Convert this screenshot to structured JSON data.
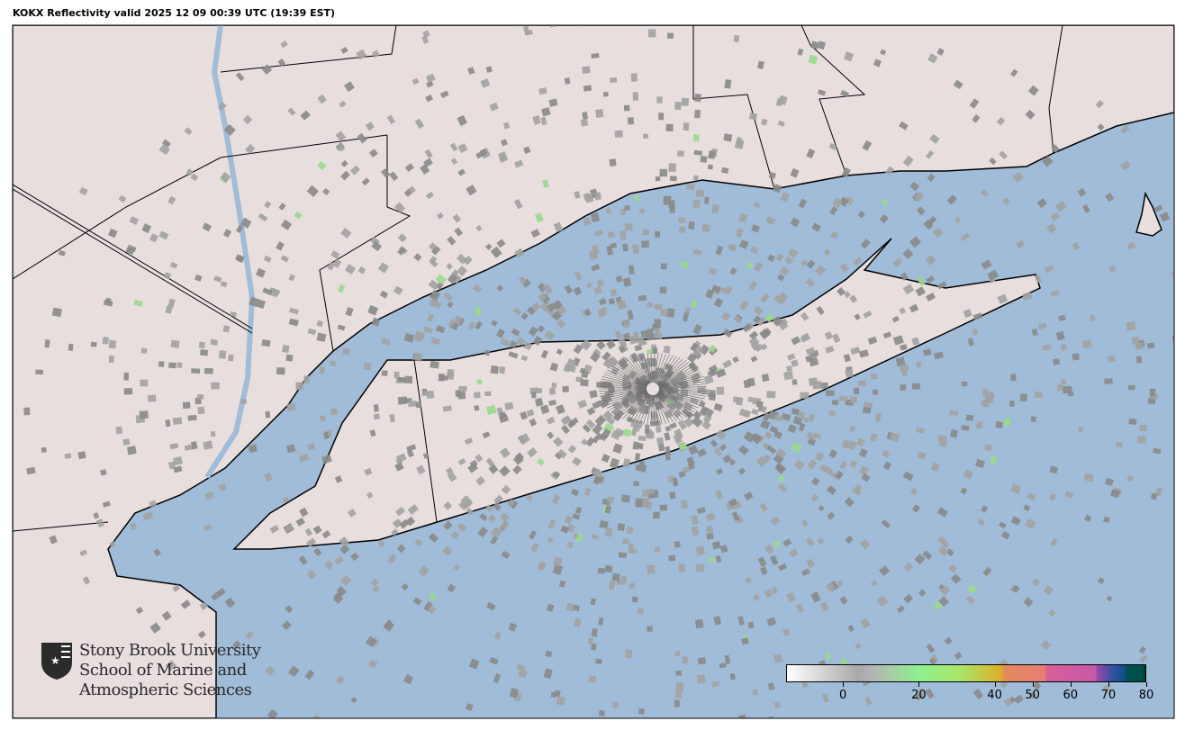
{
  "title": "KOKX Reflectivity valid 2025 12 09 00:39 UTC (19:39 EST)",
  "map": {
    "radar_site": "KOKX",
    "colors": {
      "water": "#a0bcd8",
      "land": "#e8dedd",
      "border": "#000000",
      "echo": "#8a8a8a"
    }
  },
  "logo": {
    "icon": "torch-shield-icon",
    "line1": "Stony Brook University",
    "line2": "School of Marine and",
    "line3": "Atmospheric Sciences"
  },
  "colorbar": {
    "units_range": [
      -15,
      80
    ],
    "ticks": [
      {
        "value": 0,
        "label": "0"
      },
      {
        "value": 20,
        "label": "20"
      },
      {
        "value": 40,
        "label": "40"
      },
      {
        "value": 50,
        "label": "50"
      },
      {
        "value": 60,
        "label": "60"
      },
      {
        "value": 70,
        "label": "70"
      },
      {
        "value": 80,
        "label": "80"
      }
    ]
  }
}
